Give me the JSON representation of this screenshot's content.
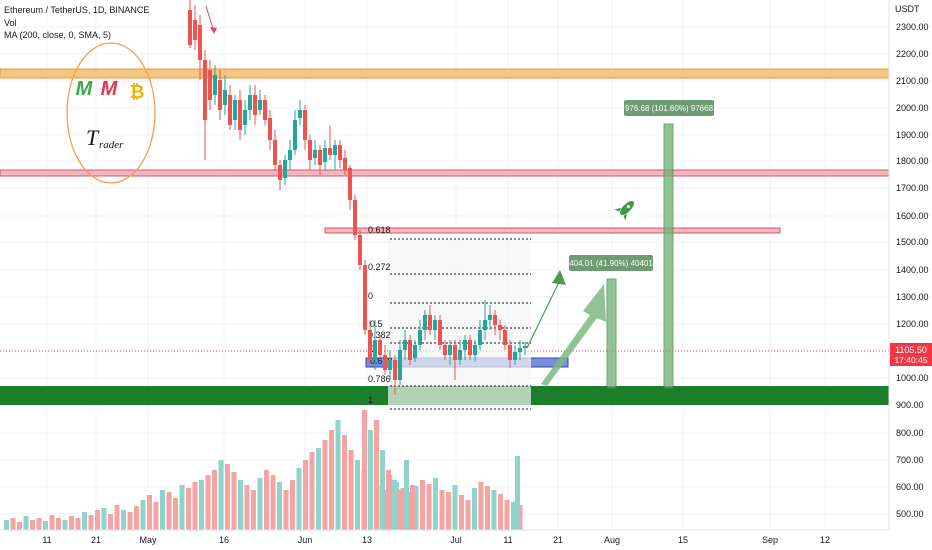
{
  "header": {
    "symbol_line": "Ethereum / TetherUS, 1D, BINANCE",
    "vol_label": "Vol",
    "ma_label": "MA (200, close, 0, SMA, 5)"
  },
  "axis": {
    "currency": "USDT",
    "price_ticks": [
      "2300.00",
      "2200.00",
      "2100.00",
      "2000.00",
      "1900.00",
      "1800.00",
      "1700.00",
      "1600.00",
      "1500.00",
      "1400.00",
      "1300.00",
      "1200.00",
      "1000.00",
      "900.00",
      "800.00",
      "700.00",
      "600.00",
      "500.00"
    ],
    "date_ticks": [
      "11",
      "21",
      "May",
      "16",
      "Jun",
      "13",
      "Jul",
      "11",
      "21",
      "Aug",
      "15",
      "Sep",
      "12"
    ]
  },
  "current_price": {
    "value": "1105.50",
    "countdown": "17:40:45",
    "color": "#f23645"
  },
  "fib_levels": [
    "0.618",
    "0.272",
    "0",
    "0.382",
    "0.786",
    "1"
  ],
  "fib_levels_small": [
    "0.5",
    "0.6",
    "0.618"
  ],
  "targets": {
    "first": "404.01 (41.90%) 40401",
    "second": "976.68 (101.60%) 97668"
  },
  "logo": {
    "letters": [
      "M",
      "M"
    ],
    "bitcoin": "₿",
    "name_t": "T",
    "name_rest": "rader"
  },
  "colors": {
    "up": "#26a69a",
    "down": "#ef5350",
    "vol_up": "#8fd3cb",
    "vol_down": "#f5a3a3",
    "support_zone": "#1b7e2a",
    "resistance_orange": "#f7c582",
    "resistance_red": "#f4b6be",
    "target_green": "#6fae72",
    "label_green": "#6c9c6f"
  }
}
